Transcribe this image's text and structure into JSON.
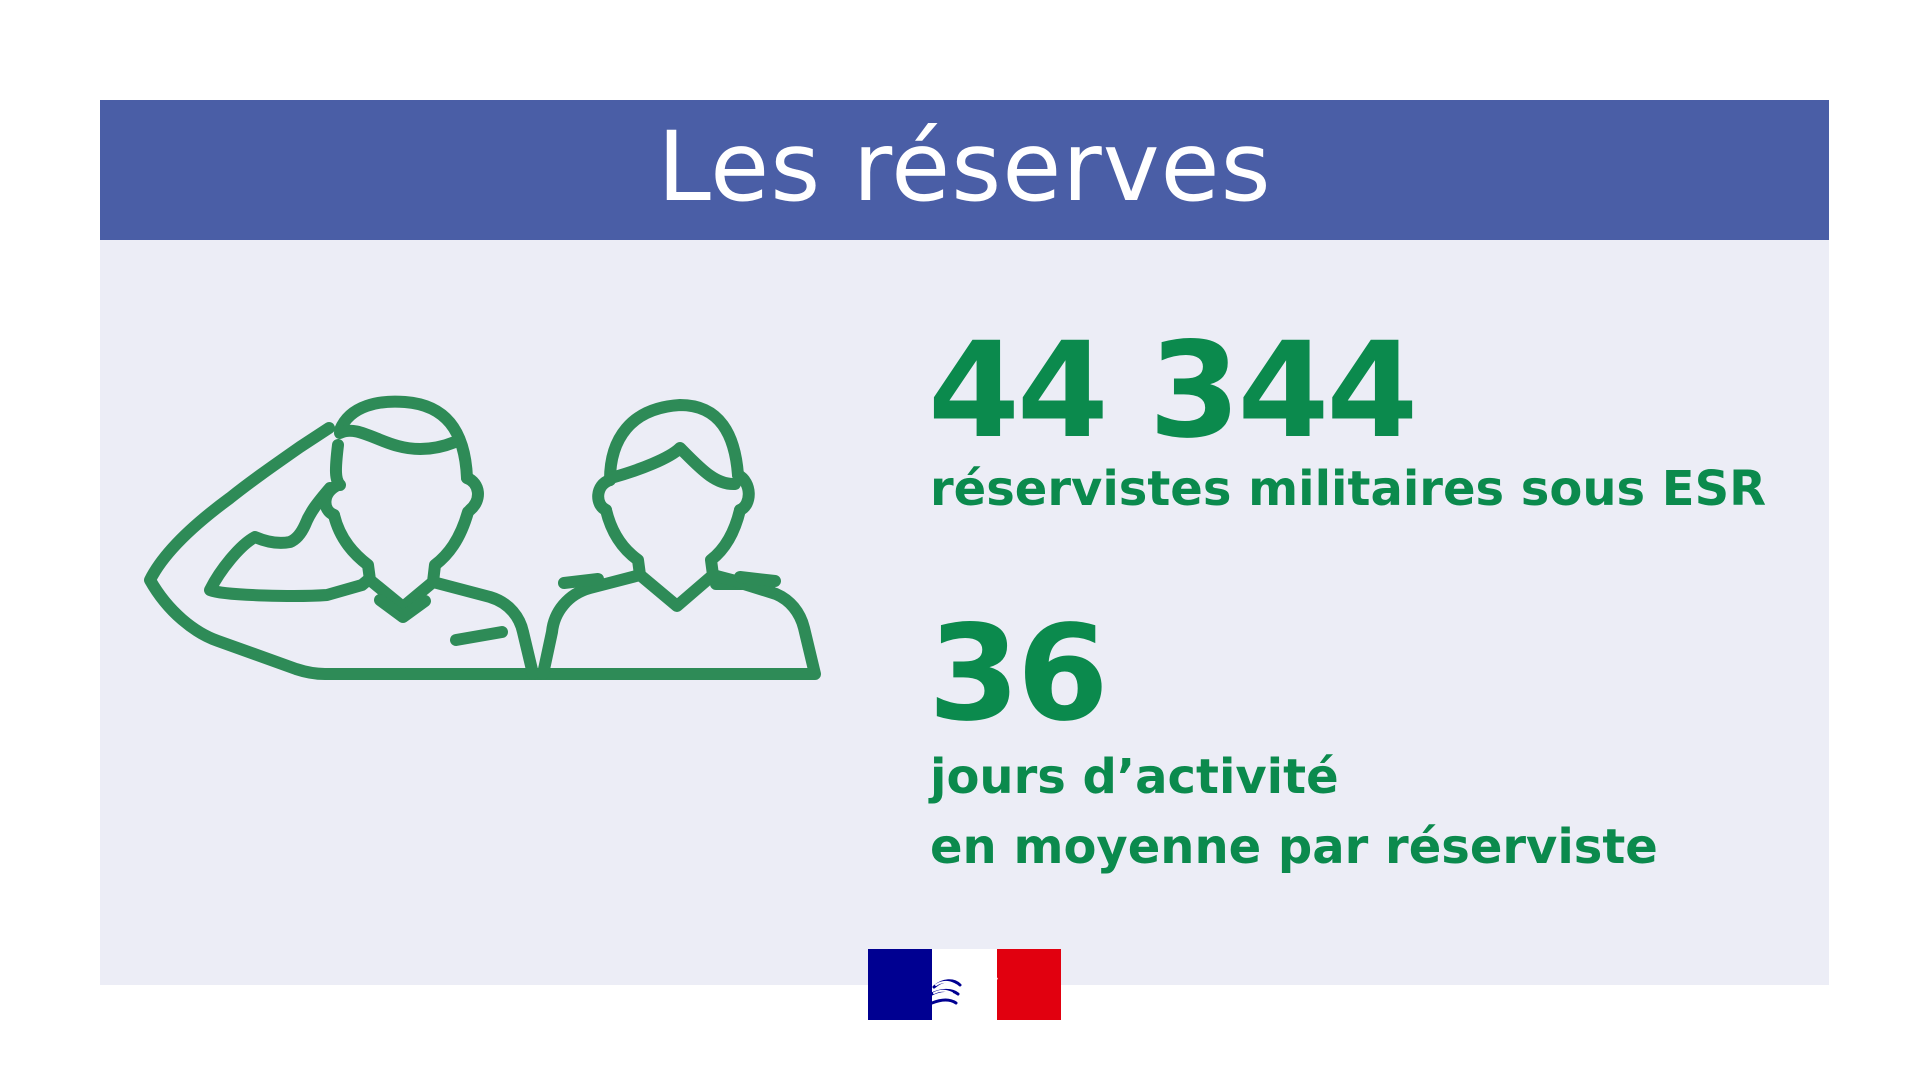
{
  "header": {
    "title": "Les réserves"
  },
  "stats": [
    {
      "value": "44 344",
      "label": "réservistes militaires sous ESR"
    },
    {
      "value": "36",
      "label_line1": "jours d’activité",
      "label_line2": "en moyenne par réserviste"
    }
  ],
  "colors": {
    "banner": "#4a5ea6",
    "panel": "#ecedf6",
    "accent_green": "#0b8a4d",
    "icon_green": "#2e8b57",
    "flag_blue": "#000091",
    "flag_red": "#e1000f"
  },
  "icons": {
    "illustration": "saluting-reservists-icon",
    "logo": "marianne-flag-logo"
  }
}
